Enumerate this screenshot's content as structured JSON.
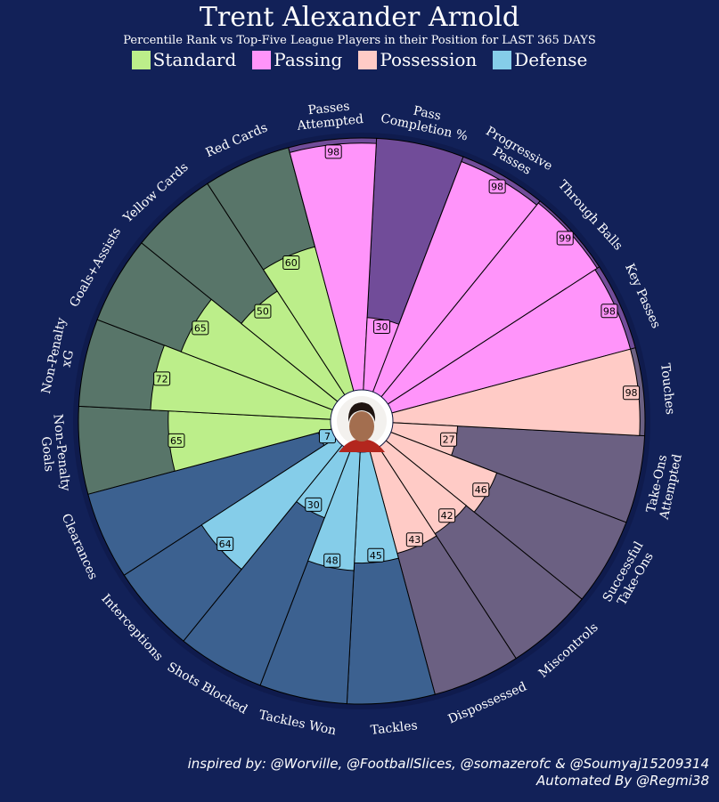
{
  "header": {
    "title": "Trent Alexander Arnold",
    "subtitle": "Percentile Rank vs Top-Five League Players in their Position for LAST 365 DAYS"
  },
  "legend": [
    {
      "label": "Standard",
      "color": "#bcee8a"
    },
    {
      "label": "Passing",
      "color": "#ff94fa"
    },
    {
      "label": "Possession",
      "color": "#ffcbc6"
    },
    {
      "label": "Defense",
      "color": "#85cde9"
    }
  ],
  "footer": {
    "credit_line1": "inspired by: @Worville, @FootballSlices, @somazerofc & @Soumyaj15209314",
    "credit_line2": "Automated By @Regmi38"
  },
  "colors": {
    "background": "#122158",
    "Standard": {
      "bar": "#bcee8a",
      "track": "#587569"
    },
    "Passing": {
      "bar": "#ff94fa",
      "track": "#714c99"
    },
    "Possession": {
      "bar": "#ffcbc6",
      "track": "#6b6082"
    },
    "Defense": {
      "bar": "#85cde9",
      "track": "#3c6190"
    }
  },
  "chart_data": {
    "type": "polar-bar",
    "rlim": [
      0,
      100
    ],
    "center_image": "player-photo",
    "categories": [
      "Non-Penalty\nGoals",
      "Non-Penalty\nxG",
      "Goals+Assists",
      "Yellow Cards",
      "Red Cards",
      "Passes\nAttempted",
      "Pass\nCompletion %",
      "Progressive\nPasses",
      "Through Balls",
      "Key Passes",
      "Touches",
      "Take-Ons\nAttempted",
      "Successful\nTake-Ons",
      "Miscontrols",
      "Dispossessed",
      "Tackles",
      "Tackles Won",
      "Shots Blocked",
      "Interceptions",
      "Clearances"
    ],
    "groups": [
      "Standard",
      "Standard",
      "Standard",
      "Standard",
      "Standard",
      "Passing",
      "Passing",
      "Passing",
      "Passing",
      "Passing",
      "Possession",
      "Possession",
      "Possession",
      "Possession",
      "Possession",
      "Defense",
      "Defense",
      "Defense",
      "Defense",
      "Defense"
    ],
    "values": [
      65,
      72,
      65,
      50,
      60,
      98,
      30,
      98,
      99,
      98,
      98,
      27,
      46,
      42,
      43,
      45,
      48,
      30,
      64,
      7
    ]
  }
}
